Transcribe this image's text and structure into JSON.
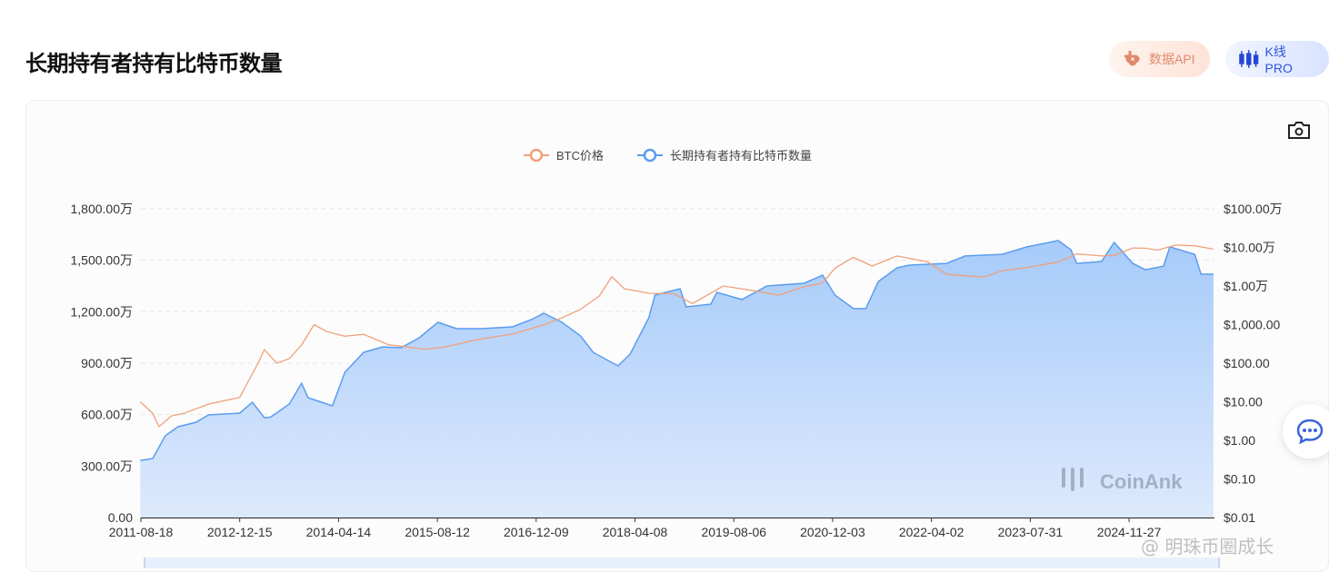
{
  "header": {
    "title": "长期持有者持有比特币数量",
    "api_label": "数据API",
    "kline_label": "K线 PRO"
  },
  "watermark": {
    "logo_text": "CoinAnk",
    "credit": "@ 明珠币圈成长"
  },
  "icons": {
    "camera": "camera-icon",
    "chat": "chat-bubble-icon",
    "api": "api-knot-icon",
    "kline": "candlestick-icon"
  },
  "colors": {
    "btc_price": "#f0a07a",
    "lth_supply": "#5b9cf0",
    "area_top": "#a6cbfa",
    "area_bottom": "#dde9fc"
  },
  "chart_data": {
    "type": "line",
    "legend_placement": "top",
    "grid": true,
    "x_range": [
      "2011-08-18",
      "2026-01-20"
    ],
    "x_ticks": [
      "2011-08-18",
      "2012-12-15",
      "2014-04-14",
      "2015-08-12",
      "2016-12-09",
      "2018-04-08",
      "2019-08-06",
      "2020-12-03",
      "2022-04-02",
      "2023-07-31",
      "2024-11-27"
    ],
    "y_left": {
      "range": [
        0,
        18000000
      ],
      "ticks": [
        "0.00",
        "300.00万",
        "600.00万",
        "900.00万",
        "1,200.00万",
        "1,500.00万",
        "1,800.00万"
      ]
    },
    "y_right": {
      "scale": "log",
      "range": [
        0.01,
        1000000
      ],
      "ticks": [
        "$0.01",
        "$0.10",
        "$1.00",
        "$10.00",
        "$100.00",
        "$1,000.00",
        "$1.00万",
        "$10.00万",
        "$100.00万"
      ]
    },
    "series": [
      {
        "name": "BTC价格",
        "axis": "right",
        "type": "line",
        "points": [
          [
            "2011-08",
            10
          ],
          [
            "2011-10",
            5
          ],
          [
            "2011-11",
            2.25
          ],
          [
            "2012-01",
            4.3
          ],
          [
            "2012-03",
            5
          ],
          [
            "2012-07",
            8.7
          ],
          [
            "2012-12",
            13
          ],
          [
            "2013-03",
            100
          ],
          [
            "2013-04",
            224
          ],
          [
            "2013-06",
            100
          ],
          [
            "2013-08",
            131
          ],
          [
            "2013-10",
            295
          ],
          [
            "2013-12",
            1000
          ],
          [
            "2014-02",
            660
          ],
          [
            "2014-05",
            500
          ],
          [
            "2014-08",
            560
          ],
          [
            "2014-12",
            300
          ],
          [
            "2015-06",
            230
          ],
          [
            "2015-09",
            260
          ],
          [
            "2016-02",
            400
          ],
          [
            "2016-08",
            570
          ],
          [
            "2017-01",
            980
          ],
          [
            "2017-04",
            1500
          ],
          [
            "2017-07",
            2500
          ],
          [
            "2017-10",
            5500
          ],
          [
            "2017-12",
            17400
          ],
          [
            "2018-02",
            8500
          ],
          [
            "2018-06",
            6500
          ],
          [
            "2018-10",
            6300
          ],
          [
            "2019-01",
            3500
          ],
          [
            "2019-06",
            10000
          ],
          [
            "2019-11",
            7500
          ],
          [
            "2020-03",
            5800
          ],
          [
            "2020-07",
            9500
          ],
          [
            "2020-10",
            12000
          ],
          [
            "2020-12",
            29000
          ],
          [
            "2021-03",
            55000
          ],
          [
            "2021-06",
            33000
          ],
          [
            "2021-10",
            60000
          ],
          [
            "2022-03",
            42000
          ],
          [
            "2022-06",
            20000
          ],
          [
            "2022-12",
            17000
          ],
          [
            "2023-03",
            25000
          ],
          [
            "2023-07",
            30000
          ],
          [
            "2023-12",
            42000
          ],
          [
            "2024-03",
            68000
          ],
          [
            "2024-07",
            60000
          ],
          [
            "2024-09",
            62000
          ],
          [
            "2024-12",
            97000
          ],
          [
            "2025-02",
            95000
          ],
          [
            "2025-04",
            85000
          ],
          [
            "2025-07",
            115000
          ],
          [
            "2025-10",
            110000
          ],
          [
            "2026-01",
            90000
          ]
        ]
      },
      {
        "name": "长期持有者持有比特币数量",
        "axis": "left",
        "type": "area",
        "points": [
          [
            "2011-08",
            3330000
          ],
          [
            "2011-10",
            3440000
          ],
          [
            "2011-12",
            4760000
          ],
          [
            "2012-02",
            5290000
          ],
          [
            "2012-05",
            5560000
          ],
          [
            "2012-07",
            5980000
          ],
          [
            "2012-12",
            6090000
          ],
          [
            "2013-02",
            6720000
          ],
          [
            "2013-04",
            5820000
          ],
          [
            "2013-05",
            5850000
          ],
          [
            "2013-08",
            6620000
          ],
          [
            "2013-10",
            7830000
          ],
          [
            "2013-11",
            6990000
          ],
          [
            "2014-03",
            6510000
          ],
          [
            "2014-05",
            8470000
          ],
          [
            "2014-08",
            9630000
          ],
          [
            "2014-11",
            9950000
          ],
          [
            "2015-02",
            9900000
          ],
          [
            "2015-05",
            10480000
          ],
          [
            "2015-08",
            11380000
          ],
          [
            "2015-11",
            11010000
          ],
          [
            "2016-03",
            11010000
          ],
          [
            "2016-08",
            11120000
          ],
          [
            "2016-11",
            11540000
          ],
          [
            "2017-01",
            11910000
          ],
          [
            "2017-04",
            11380000
          ],
          [
            "2017-07",
            10590000
          ],
          [
            "2017-09",
            9630000
          ],
          [
            "2018-01",
            8840000
          ],
          [
            "2018-03",
            9530000
          ],
          [
            "2018-06",
            11650000
          ],
          [
            "2018-07",
            12970000
          ],
          [
            "2018-11",
            13340000
          ],
          [
            "2018-12",
            12280000
          ],
          [
            "2019-04",
            12440000
          ],
          [
            "2019-05",
            13130000
          ],
          [
            "2019-09",
            12710000
          ],
          [
            "2020-01",
            13500000
          ],
          [
            "2020-07",
            13660000
          ],
          [
            "2020-10",
            14130000
          ],
          [
            "2020-12",
            12970000
          ],
          [
            "2021-03",
            12180000
          ],
          [
            "2021-05",
            12180000
          ],
          [
            "2021-07",
            13760000
          ],
          [
            "2021-10",
            14560000
          ],
          [
            "2021-12",
            14720000
          ],
          [
            "2022-06",
            14820000
          ],
          [
            "2022-09",
            15250000
          ],
          [
            "2023-03",
            15350000
          ],
          [
            "2023-07",
            15780000
          ],
          [
            "2023-12",
            16150000
          ],
          [
            "2024-02",
            15620000
          ],
          [
            "2024-03",
            14820000
          ],
          [
            "2024-07",
            14930000
          ],
          [
            "2024-09",
            16040000
          ],
          [
            "2024-12",
            14820000
          ],
          [
            "2025-02",
            14450000
          ],
          [
            "2025-05",
            14660000
          ],
          [
            "2025-06",
            15780000
          ],
          [
            "2025-10",
            15350000
          ],
          [
            "2025-11",
            14190000
          ],
          [
            "2026-01",
            14190000
          ]
        ]
      }
    ]
  }
}
